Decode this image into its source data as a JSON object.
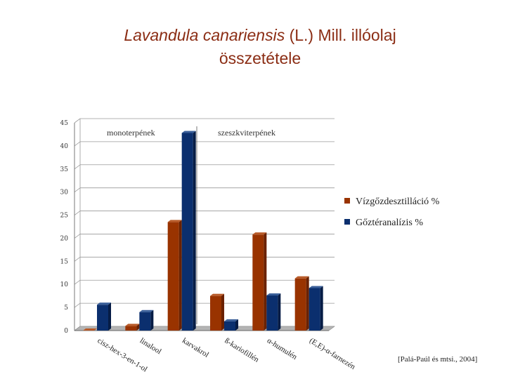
{
  "title": {
    "species": "Lavandula canariensis",
    "rest_line1": " (L.) Mill. illóolaj",
    "line2": "összetétele"
  },
  "citation": "[Palá-Paúl és mtsi., 2004]",
  "colors": {
    "title": "#8b2d14",
    "series_1_front": "#993300",
    "series_2_front": "#0b2f6e"
  },
  "chart_data": {
    "type": "bar",
    "style": "3d-clustered",
    "ylim": [
      0,
      45
    ],
    "yticks": [
      0,
      5,
      10,
      15,
      20,
      25,
      30,
      35,
      40,
      45
    ],
    "group_labels": [
      "monoterpének",
      "szeszkviterpének"
    ],
    "categories": [
      "cisz-hex-3-en-1-ol",
      "linalool",
      "karvakrol",
      "ß-kariofillén",
      "α-humulén",
      "(E,E)-α-farnezén"
    ],
    "series": [
      {
        "name": "Vízgőzdesztilláció %",
        "values": [
          0,
          1,
          23.5,
          7.5,
          20.8,
          11.3
        ]
      },
      {
        "name": "Gőztéranalízis %",
        "values": [
          5.6,
          4,
          42.8,
          2,
          7.6,
          9.2
        ]
      }
    ],
    "legend_position": "right"
  }
}
